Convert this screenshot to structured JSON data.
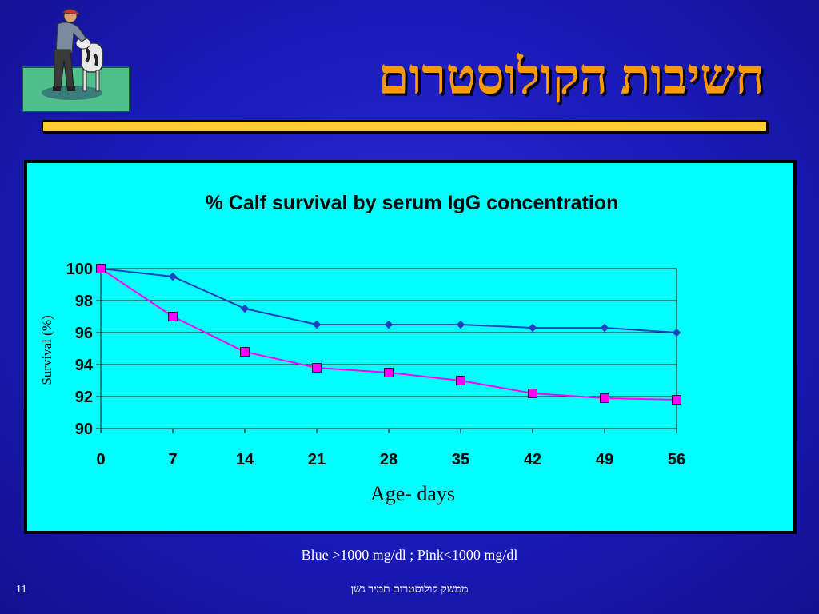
{
  "slide": {
    "title": "חשיבות הקולוסטרום",
    "legend_note": "Blue >1000 mg/dl ; Pink<1000 mg/dl",
    "slide_number": "11",
    "footer": "ממשק קולוסטרום תמיר גשן"
  },
  "clipart": {
    "icon": "farmer-with-calf-icon"
  },
  "chart_data": {
    "type": "line",
    "title": "% Calf survival by serum IgG concentration",
    "xlabel": "Age- days",
    "ylabel": "Survival (%)",
    "x": [
      0,
      7,
      14,
      21,
      28,
      35,
      42,
      49,
      56
    ],
    "xticks": [
      "0",
      "7",
      "14",
      "21",
      "28",
      "35",
      "42",
      "49",
      "56"
    ],
    "yticks": [
      "90",
      "92",
      "94",
      "96",
      "98",
      "100"
    ],
    "xlim": [
      0,
      56
    ],
    "ylim": [
      90,
      100
    ],
    "grid": "horizontal",
    "legend": "none",
    "series": [
      {
        "color": "#1f3fbf",
        "marker": "diamond",
        "values": [
          100,
          99.5,
          97.5,
          96.5,
          96.5,
          96.5,
          96.3,
          96.3,
          96.0
        ]
      },
      {
        "color": "#ff00ff",
        "marker": "square",
        "values": [
          100,
          97.0,
          94.8,
          93.8,
          93.5,
          93.0,
          92.2,
          91.9,
          91.8
        ]
      }
    ]
  }
}
